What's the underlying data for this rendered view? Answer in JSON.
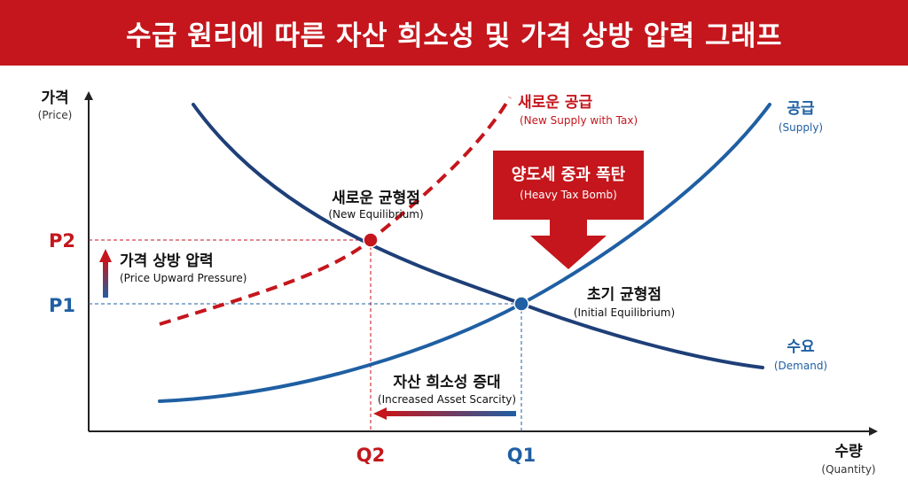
{
  "title": "수급 원리에 따른 자산 희소성 및 가격 상방 압력 그래프",
  "axes": {
    "y": {
      "label": "가격",
      "sub": "(Price)"
    },
    "x": {
      "label": "수량",
      "sub": "(Quantity)"
    },
    "ticks": {
      "p2": "P2",
      "p1": "P1",
      "q2": "Q2",
      "q1": "Q1"
    }
  },
  "curves": {
    "new_supply": {
      "label": "새로운 공급",
      "sub": "(New Supply with Tax)"
    },
    "supply": {
      "label": "공급",
      "sub": "(Supply)"
    },
    "demand": {
      "label": "수요",
      "sub": "(Demand)"
    }
  },
  "points": {
    "new_eq": {
      "label": "새로운 균형점",
      "sub": "(New Equilibrium)"
    },
    "initial_eq": {
      "label": "초기 균형점",
      "sub": "(Initial Equilibrium)"
    }
  },
  "callouts": {
    "tax_bomb": {
      "label": "양도세 중과 폭탄",
      "sub": "(Heavy Tax Bomb)"
    },
    "price_pressure": {
      "label": "가격 상방 압력",
      "sub": "(Price Upward Pressure)"
    },
    "scarcity": {
      "label": "자산 희소성 증대",
      "sub": "(Increased Asset Scarcity)"
    }
  },
  "colors": {
    "red": "#c4161c",
    "blue": "#1f5fa3",
    "navy": "#1e3f78",
    "axis": "#222222"
  }
}
